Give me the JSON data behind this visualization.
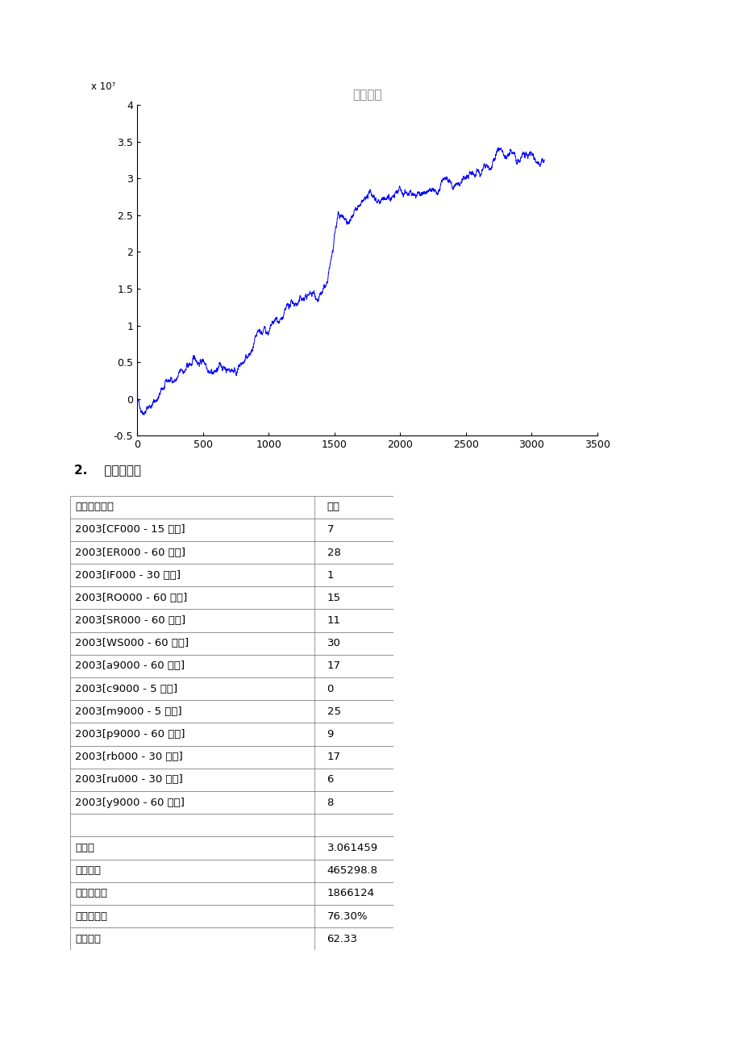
{
  "chart_title": "资金曲线",
  "section_title": "2.    等合约价值",
  "table_headers": [
    "组合策略模块",
    "头寸"
  ],
  "table_rows": [
    [
      "2003[CF000 - 15 分钟]",
      "7"
    ],
    [
      "2003[ER000 - 60 分钟]",
      "28"
    ],
    [
      "2003[IF000 - 30 分钟]",
      "1"
    ],
    [
      "2003[RO000 - 60 分钟]",
      "15"
    ],
    [
      "2003[SR000 - 60 分钟]",
      "11"
    ],
    [
      "2003[WS000 - 60 分钟]",
      "30"
    ],
    [
      "2003[a9000 - 60 分钟]",
      "17"
    ],
    [
      "2003[c9000 - 5 分钟]",
      "0"
    ],
    [
      "2003[m9000 - 5 分钟]",
      "25"
    ],
    [
      "2003[p9000 - 60 分钟]",
      "9"
    ],
    [
      "2003[rb000 - 30 分钟]",
      "17"
    ],
    [
      "2003[ru000 - 30 分钟]",
      "6"
    ],
    [
      "2003[y9000 - 60 分钟]",
      "8"
    ]
  ],
  "stats_rows": [
    [
      "风报比",
      "3.061459"
    ],
    [
      "最大回撤",
      "465298.8"
    ],
    [
      "保证金占用",
      "1866124"
    ],
    [
      "年化收益率",
      "76.30%"
    ],
    [
      "夏普比率",
      "62.33"
    ]
  ],
  "line_color": "#0000FF",
  "background_color": "#FFFFFF",
  "xlim": [
    0,
    3500
  ],
  "ylim": [
    -0.5,
    4.0
  ],
  "xticks": [
    0,
    500,
    1000,
    1500,
    2000,
    2500,
    3000,
    3500
  ],
  "yticks": [
    -0.5,
    0,
    0.5,
    1.0,
    1.5,
    2.0,
    2.5,
    3.0,
    3.5,
    4.0
  ],
  "y_scale_label": "x 10⁷",
  "seed": 42
}
